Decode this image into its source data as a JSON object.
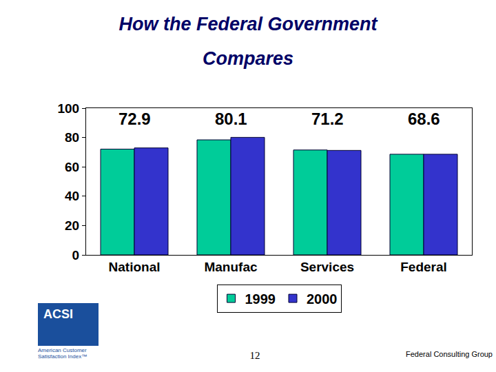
{
  "chart_data": {
    "type": "bar",
    "title": "How the Federal Government Compares",
    "categories": [
      "National",
      "Manufac",
      "Services",
      "Federal"
    ],
    "series": [
      {
        "name": "1999",
        "color": "#00cc99",
        "values": [
          72.1,
          78.4,
          71.5,
          68.6
        ]
      },
      {
        "name": "2000",
        "color": "#3333cc",
        "values": [
          72.9,
          80.1,
          71.2,
          68.6
        ],
        "data_labels": true
      }
    ],
    "ylim": [
      0,
      100
    ],
    "yticks": [
      0,
      20,
      40,
      60,
      80,
      100
    ],
    "grid": false,
    "legend": "bottom"
  },
  "footer": {
    "page": "12",
    "organization": "Federal Consulting Group",
    "logo": {
      "text": "ACSI",
      "caption": "American Customer Satisfaction Index™"
    }
  }
}
